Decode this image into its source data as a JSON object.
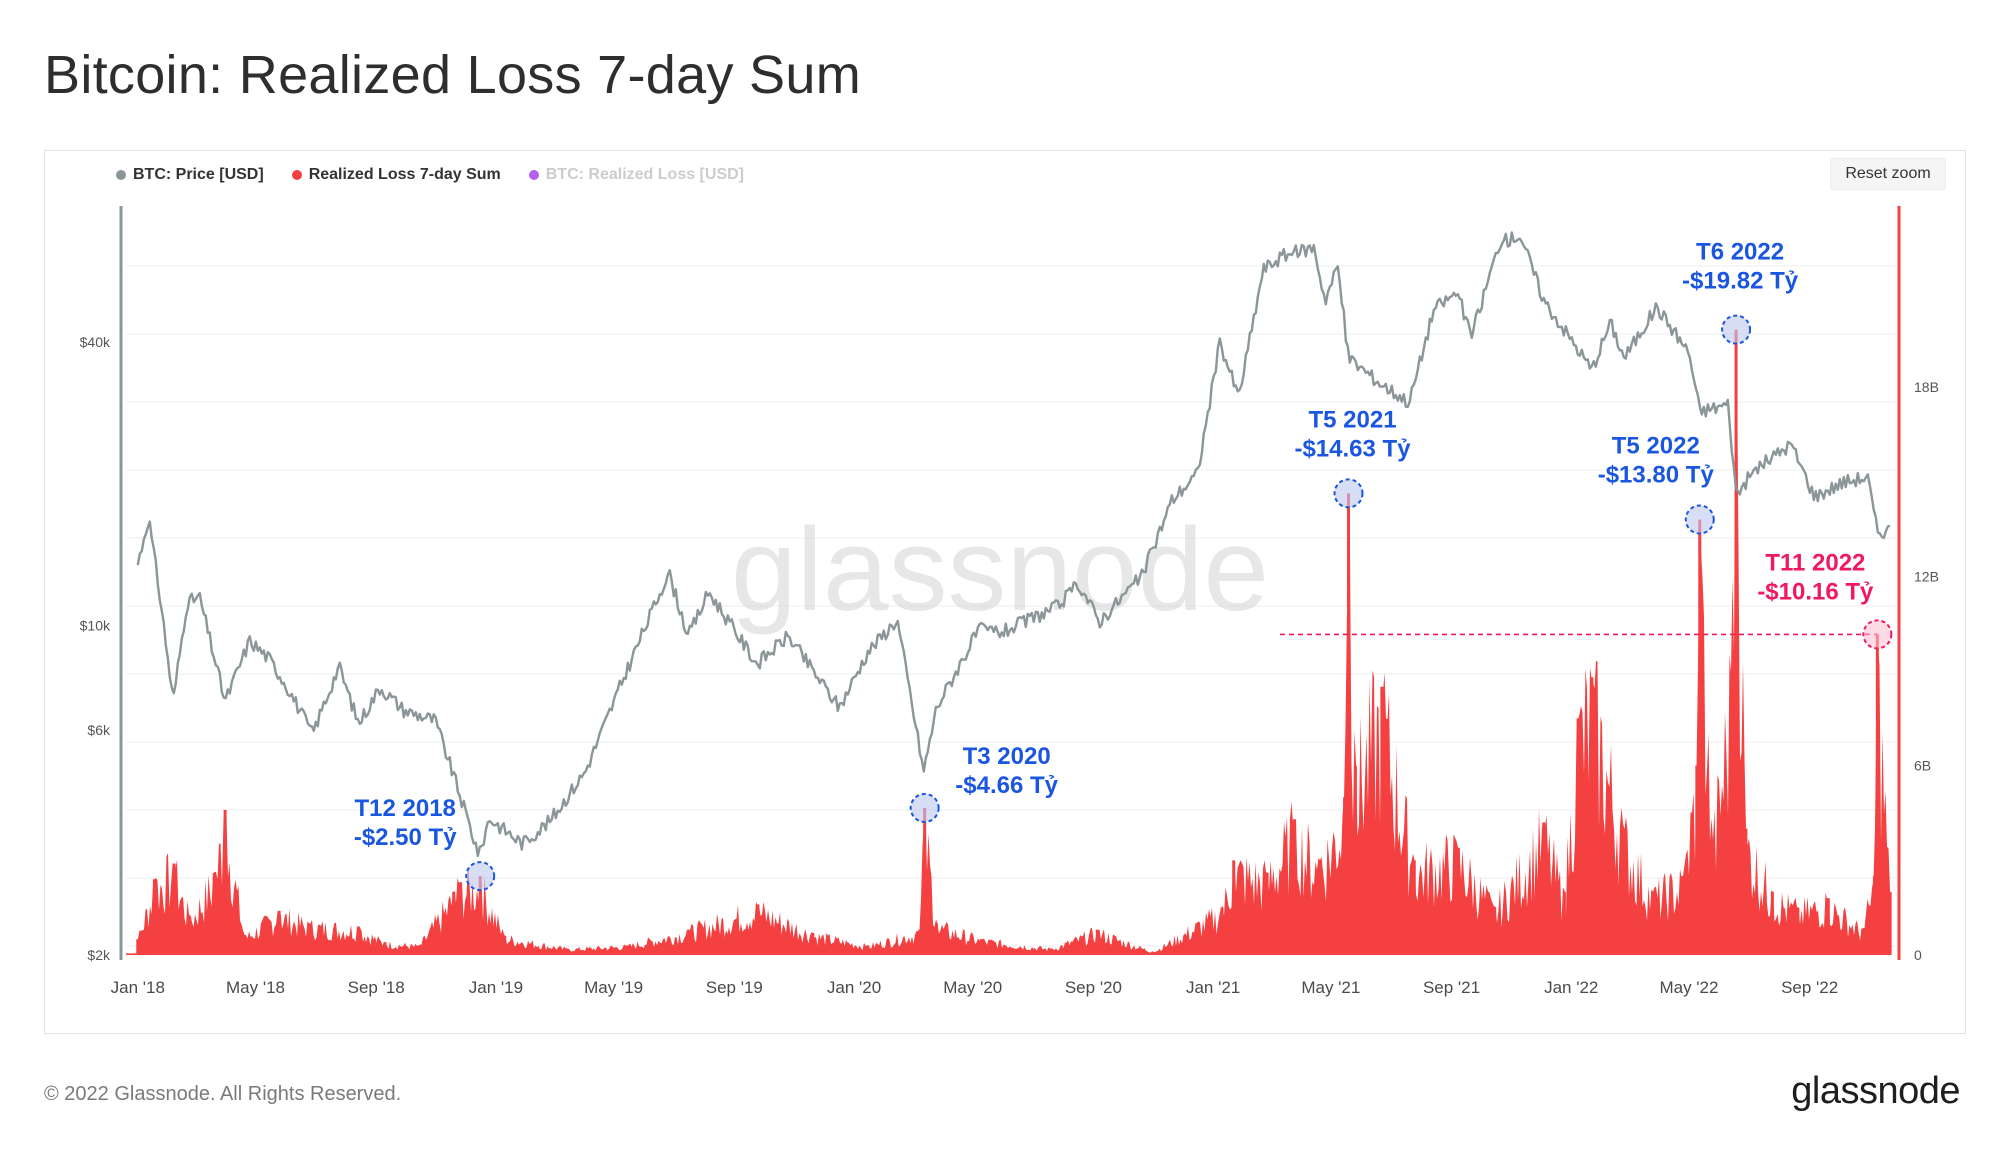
{
  "title": "Bitcoin: Realized Loss 7-day Sum",
  "legend": {
    "price": "BTC: Price [USD]",
    "loss7d": "Realized Loss 7-day Sum",
    "loss": "BTC: Realized Loss [USD]"
  },
  "reset_zoom": "Reset zoom",
  "watermark": "glassnode",
  "footer": {
    "copyright": "© 2022 Glassnode. All Rights Reserved.",
    "logo": "glassnode"
  },
  "colors": {
    "price": "#8b9699",
    "loss": "#f44040",
    "legend_disabled": "#b35ff0",
    "annotation_blue": "#1a56e0",
    "annotation_red": "#f01860",
    "right_axis": "#f44040",
    "left_axis": "#8b9699"
  },
  "chart_data": {
    "type": "line+area",
    "x_ticks": [
      "Jan '18",
      "May '18",
      "Sep '18",
      "Jan '19",
      "May '19",
      "Sep '19",
      "Jan '20",
      "May '20",
      "Sep '20",
      "Jan '21",
      "May '21",
      "Sep '21",
      "Jan '22",
      "May '22",
      "Sep '22"
    ],
    "left_axis": {
      "scale": "log",
      "ticks": [
        "$2k",
        "$6k",
        "$10k",
        "$40k"
      ],
      "tick_values": [
        2000,
        6000,
        10000,
        40000
      ]
    },
    "right_axis": {
      "scale": "linear",
      "ticks": [
        "0",
        "6B",
        "12B",
        "18B"
      ],
      "tick_values": [
        0,
        6,
        12,
        18
      ],
      "unit": "B"
    },
    "series": [
      {
        "name": "BTC: Price [USD]",
        "axis": "left",
        "points": [
          [
            "2018-01-01",
            13500
          ],
          [
            "2018-01-12",
            17000
          ],
          [
            "2018-01-25",
            11000
          ],
          [
            "2018-02-06",
            6900
          ],
          [
            "2018-02-20",
            11200
          ],
          [
            "2018-03-05",
            11500
          ],
          [
            "2018-03-31",
            6900
          ],
          [
            "2018-04-25",
            9300
          ],
          [
            "2018-05-15",
            8500
          ],
          [
            "2018-06-01",
            7500
          ],
          [
            "2018-06-28",
            5900
          ],
          [
            "2018-07-25",
            8200
          ],
          [
            "2018-08-14",
            6200
          ],
          [
            "2018-09-05",
            7400
          ],
          [
            "2018-09-30",
            6600
          ],
          [
            "2018-10-31",
            6300
          ],
          [
            "2018-11-19",
            4800
          ],
          [
            "2018-12-15",
            3250
          ],
          [
            "2018-12-25",
            3900
          ],
          [
            "2019-01-28",
            3450
          ],
          [
            "2019-02-25",
            3850
          ],
          [
            "2019-04-02",
            4900
          ],
          [
            "2019-05-14",
            8000
          ],
          [
            "2019-06-26",
            13000
          ],
          [
            "2019-07-16",
            9500
          ],
          [
            "2019-08-06",
            11800
          ],
          [
            "2019-09-24",
            8300
          ],
          [
            "2019-10-26",
            9500
          ],
          [
            "2019-12-17",
            6700
          ],
          [
            "2020-01-15",
            8800
          ],
          [
            "2020-02-14",
            10300
          ],
          [
            "2020-03-12",
            4900
          ],
          [
            "2020-03-25",
            6700
          ],
          [
            "2020-05-07",
            9800
          ],
          [
            "2020-06-01",
            9700
          ],
          [
            "2020-07-27",
            11000
          ],
          [
            "2020-08-17",
            12300
          ],
          [
            "2020-09-07",
            10200
          ],
          [
            "2020-10-21",
            12800
          ],
          [
            "2020-11-20",
            18500
          ],
          [
            "2020-12-16",
            21000
          ],
          [
            "2021-01-08",
            40000
          ],
          [
            "2021-01-27",
            30500
          ],
          [
            "2021-02-21",
            57000
          ],
          [
            "2021-03-13",
            61000
          ],
          [
            "2021-04-14",
            63500
          ],
          [
            "2021-04-25",
            49000
          ],
          [
            "2021-05-08",
            58000
          ],
          [
            "2021-05-19",
            37000
          ],
          [
            "2021-06-22",
            32500
          ],
          [
            "2021-07-20",
            29800
          ],
          [
            "2021-08-14",
            47000
          ],
          [
            "2021-09-07",
            51000
          ],
          [
            "2021-09-21",
            41000
          ],
          [
            "2021-10-20",
            65000
          ],
          [
            "2021-11-10",
            67500
          ],
          [
            "2021-12-04",
            49000
          ],
          [
            "2022-01-22",
            35000
          ],
          [
            "2022-02-10",
            44000
          ],
          [
            "2022-02-24",
            37000
          ],
          [
            "2022-03-29",
            47500
          ],
          [
            "2022-05-01",
            38000
          ],
          [
            "2022-05-12",
            28500
          ],
          [
            "2022-06-10",
            29500
          ],
          [
            "2022-06-18",
            19000
          ],
          [
            "2022-07-08",
            21500
          ],
          [
            "2022-08-13",
            24300
          ],
          [
            "2022-09-06",
            18800
          ],
          [
            "2022-10-06",
            20200
          ],
          [
            "2022-10-30",
            20700
          ],
          [
            "2022-11-09",
            15800
          ],
          [
            "2022-11-22",
            16000
          ]
        ]
      },
      {
        "name": "Realized Loss 7-day Sum",
        "axis": "right",
        "unit": "B USD",
        "points": [
          [
            "2018-01-01",
            0.5
          ],
          [
            "2018-01-18",
            2.4
          ],
          [
            "2018-02-07",
            2.9
          ],
          [
            "2018-02-23",
            1.2
          ],
          [
            "2018-03-20",
            2.6
          ],
          [
            "2018-03-31",
            4.6
          ],
          [
            "2018-04-20",
            0.6
          ],
          [
            "2018-05-25",
            1.4
          ],
          [
            "2018-06-25",
            1.0
          ],
          [
            "2018-08-14",
            0.9
          ],
          [
            "2018-09-10",
            0.4
          ],
          [
            "2018-10-15",
            0.3
          ],
          [
            "2018-11-19",
            2.0
          ],
          [
            "2018-11-25",
            2.3
          ],
          [
            "2018-12-16",
            2.5
          ],
          [
            "2019-01-10",
            0.6
          ],
          [
            "2019-03-15",
            0.2
          ],
          [
            "2019-05-15",
            0.3
          ],
          [
            "2019-07-16",
            0.8
          ],
          [
            "2019-09-25",
            1.6
          ],
          [
            "2019-11-20",
            0.7
          ],
          [
            "2020-01-15",
            0.3
          ],
          [
            "2020-03-08",
            0.8
          ],
          [
            "2020-03-13",
            4.66
          ],
          [
            "2020-03-25",
            1.0
          ],
          [
            "2020-05-10",
            0.5
          ],
          [
            "2020-07-20",
            0.2
          ],
          [
            "2020-09-05",
            0.8
          ],
          [
            "2020-11-01",
            0.1
          ],
          [
            "2021-01-10",
            1.5
          ],
          [
            "2021-01-22",
            3.0
          ],
          [
            "2021-02-25",
            2.6
          ],
          [
            "2021-03-25",
            4.3
          ],
          [
            "2021-04-20",
            3.0
          ],
          [
            "2021-05-15",
            5.0
          ],
          [
            "2021-05-19",
            14.63
          ],
          [
            "2021-05-26",
            6.0
          ],
          [
            "2021-06-22",
            8.5
          ],
          [
            "2021-07-25",
            3.0
          ],
          [
            "2021-09-08",
            3.4
          ],
          [
            "2021-10-15",
            1.5
          ],
          [
            "2021-12-04",
            4.2
          ],
          [
            "2021-12-25",
            2.0
          ],
          [
            "2022-01-08",
            7.5
          ],
          [
            "2022-01-22",
            8.8
          ],
          [
            "2022-02-24",
            4.0
          ],
          [
            "2022-03-25",
            2.0
          ],
          [
            "2022-04-25",
            2.5
          ],
          [
            "2022-05-09",
            6.0
          ],
          [
            "2022-05-12",
            13.8
          ],
          [
            "2022-05-25",
            3.5
          ],
          [
            "2022-06-13",
            9.0
          ],
          [
            "2022-06-18",
            19.82
          ],
          [
            "2022-06-28",
            4.0
          ],
          [
            "2022-07-25",
            2.0
          ],
          [
            "2022-08-20",
            1.5
          ],
          [
            "2022-09-20",
            1.8
          ],
          [
            "2022-10-25",
            0.8
          ],
          [
            "2022-11-06",
            2.5
          ],
          [
            "2022-11-09",
            10.16
          ],
          [
            "2022-11-22",
            2.0
          ]
        ]
      },
      {
        "name": "BTC: Realized Loss [USD]",
        "axis": "right",
        "visible": false,
        "points": []
      }
    ],
    "annotations": [
      {
        "label": "T12 2018",
        "value_label": "-$2.50 Tỷ",
        "date": "2018-12-16",
        "value": 2.5,
        "color": "blue"
      },
      {
        "label": "T3 2020",
        "value_label": "-$4.66 Tỷ",
        "date": "2020-03-13",
        "value": 4.66,
        "color": "blue"
      },
      {
        "label": "T5 2021",
        "value_label": "-$14.63 Tỷ",
        "date": "2021-05-19",
        "value": 14.63,
        "color": "blue"
      },
      {
        "label": "T5 2022",
        "value_label": "-$13.80 Tỷ",
        "date": "2022-05-12",
        "value": 13.8,
        "color": "blue"
      },
      {
        "label": "T6 2022",
        "value_label": "-$19.82 Tỷ",
        "date": "2022-06-18",
        "value": 19.82,
        "color": "blue"
      },
      {
        "label": "T11 2022",
        "value_label": "-$10.16 Tỷ",
        "date": "2022-11-09",
        "value": 10.16,
        "color": "red",
        "reference_line": true
      }
    ],
    "grid": true,
    "legend_position": "top-left"
  }
}
